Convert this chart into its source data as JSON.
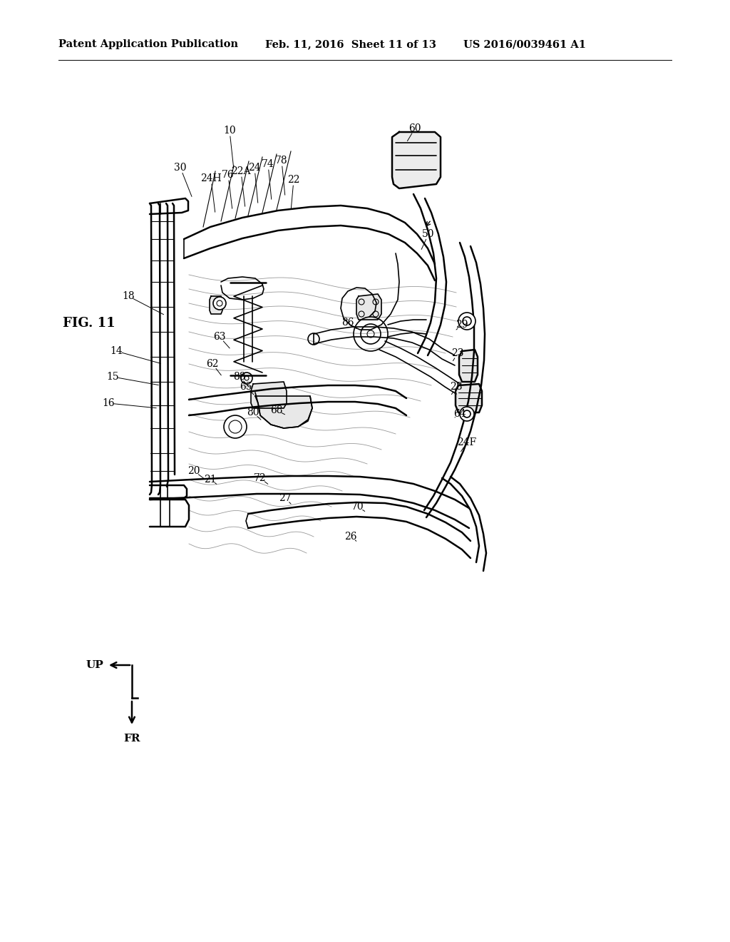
{
  "bg_color": "#ffffff",
  "line_color": "#000000",
  "header_left": "Patent Application Publication",
  "header_mid": "Feb. 11, 2016  Sheet 11 of 13",
  "header_right": "US 2016/0039461 A1",
  "fig_label": "FIG. 11",
  "lw_thick": 1.8,
  "lw_med": 1.2,
  "lw_thin": 0.8,
  "lw_bg": 0.6,
  "label_fontsize": 10.0,
  "header_fontsize": 10.5
}
